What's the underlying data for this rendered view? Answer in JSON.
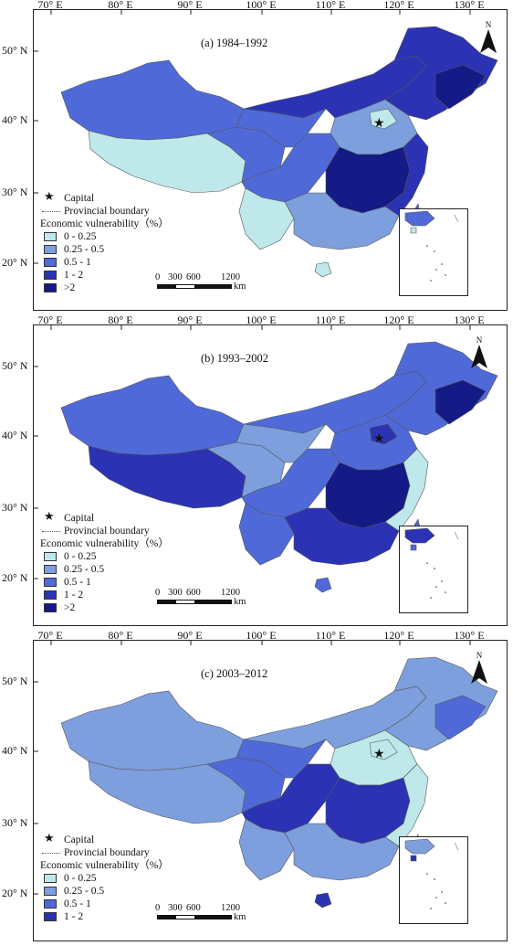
{
  "longitude_labels": [
    "70° E",
    "80° E",
    "90° E",
    "100° E",
    "110° E",
    "120° E",
    "130° E"
  ],
  "latitude_labels": [
    "50° N",
    "40° N",
    "30° N",
    "20° N"
  ],
  "north_label": "N",
  "legend": {
    "capital_label": "Capital",
    "boundary_label": "Provincial boundary",
    "title": "Economic vulnerability（%）"
  },
  "scale_bar": {
    "ticks": [
      "0",
      "300",
      "600",
      "1200"
    ],
    "unit": "km"
  },
  "colors": {
    "class_0_025": "#bfe8ea",
    "class_025_05": "#7e9fdd",
    "class_05_1": "#4f6ad8",
    "class_1_2": "#2b33b4",
    "class_gt2": "#141a86",
    "sea": "#ffffff",
    "boundary": "#555555"
  },
  "panels": [
    {
      "title": "(a) 1984–1992",
      "classes": [
        "0 - 0.25",
        "0.25 - 0.5",
        "0.5 - 1",
        "1 - 2",
        ">2"
      ]
    },
    {
      "title": "(b) 1993–2002",
      "classes": [
        "0 - 0.25",
        "0.25 - 0.5",
        "0.5 - 1",
        "1 - 2",
        ">2"
      ]
    },
    {
      "title": "(c) 2003–2012",
      "classes": [
        "0 - 0.25",
        "0.25 - 0.5",
        "0.5 - 1",
        "1 - 2"
      ]
    }
  ]
}
